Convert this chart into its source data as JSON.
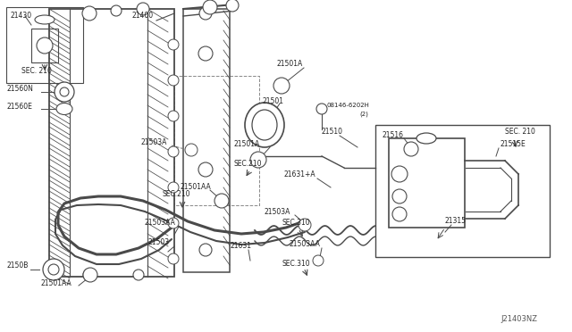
{
  "bg_color": "#ffffff",
  "line_color": "#4a4a4a",
  "diagram_id": "J21403NZ",
  "fig_w": 6.4,
  "fig_h": 3.72,
  "dpi": 100,
  "xlim": [
    0,
    640
  ],
  "ylim": [
    0,
    372
  ]
}
